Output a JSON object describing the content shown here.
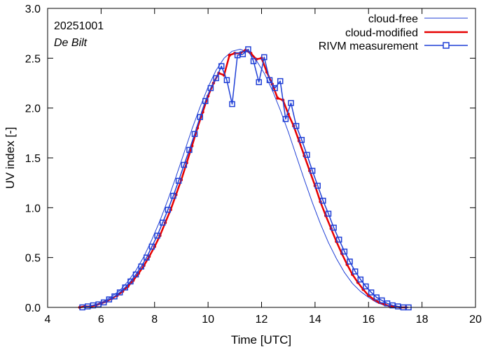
{
  "chart_data": {
    "type": "line",
    "title": "",
    "xlabel": "Time  [UTC]",
    "ylabel": "UV index  [-]",
    "xlim": [
      4,
      20
    ],
    "ylim": [
      0,
      3.0
    ],
    "xticks": [
      "4",
      "6",
      "8",
      "10",
      "12",
      "14",
      "16",
      "18",
      "20"
    ],
    "yticks": [
      "0.0",
      "0.5",
      "1.0",
      "1.5",
      "2.0",
      "2.5",
      "3.0"
    ],
    "annotations": {
      "date": "20251001",
      "location": "De Bilt"
    },
    "legend_position": "top-right",
    "colors": {
      "cloud_free": "#1f3fd6",
      "cloud_modified": "#e60000",
      "measurement": "#1f3fd6"
    },
    "series": [
      {
        "name": "cloud-free",
        "style": "line",
        "x": [
          5.2,
          5.5,
          5.8,
          6.1,
          6.4,
          6.7,
          7.0,
          7.3,
          7.6,
          7.9,
          8.2,
          8.5,
          8.8,
          9.1,
          9.4,
          9.7,
          10.0,
          10.3,
          10.6,
          10.9,
          11.2,
          11.5,
          11.8,
          12.1,
          12.4,
          12.7,
          13.0,
          13.3,
          13.6,
          13.9,
          14.2,
          14.5,
          14.8,
          15.1,
          15.4,
          15.7,
          16.0,
          16.3,
          16.6,
          16.9,
          17.2,
          17.5
        ],
        "y": [
          0.0,
          0.01,
          0.03,
          0.06,
          0.11,
          0.17,
          0.26,
          0.37,
          0.51,
          0.68,
          0.87,
          1.08,
          1.31,
          1.55,
          1.79,
          2.01,
          2.21,
          2.38,
          2.5,
          2.57,
          2.59,
          2.56,
          2.48,
          2.35,
          2.18,
          1.98,
          1.76,
          1.52,
          1.28,
          1.05,
          0.84,
          0.65,
          0.49,
          0.35,
          0.24,
          0.16,
          0.1,
          0.05,
          0.02,
          0.01,
          0.0,
          0.0
        ]
      },
      {
        "name": "cloud-modified",
        "style": "line-markers",
        "x": [
          5.2,
          5.4,
          5.6,
          5.8,
          6.0,
          6.2,
          6.4,
          6.6,
          6.8,
          7.0,
          7.2,
          7.4,
          7.6,
          7.8,
          8.0,
          8.2,
          8.4,
          8.6,
          8.8,
          9.0,
          9.2,
          9.4,
          9.6,
          9.8,
          10.0,
          10.2,
          10.4,
          10.6,
          10.8,
          11.0,
          11.2,
          11.4,
          11.6,
          11.8,
          12.0,
          12.2,
          12.4,
          12.6,
          12.8,
          13.0,
          13.2,
          13.4,
          13.6,
          13.8,
          14.0,
          14.2,
          14.4,
          14.6,
          14.8,
          15.0,
          15.2,
          15.4,
          15.6,
          15.8,
          16.0,
          16.2,
          16.4,
          16.6,
          16.8,
          17.0,
          17.2,
          17.4
        ],
        "y": [
          0.0,
          0.01,
          0.01,
          0.02,
          0.04,
          0.06,
          0.09,
          0.12,
          0.16,
          0.21,
          0.27,
          0.34,
          0.42,
          0.51,
          0.61,
          0.72,
          0.85,
          0.98,
          1.13,
          1.28,
          1.45,
          1.62,
          1.8,
          1.96,
          2.12,
          2.25,
          2.35,
          2.33,
          2.53,
          2.55,
          2.55,
          2.58,
          2.55,
          2.49,
          2.5,
          2.36,
          2.24,
          2.1,
          2.08,
          1.94,
          1.82,
          1.67,
          1.52,
          1.37,
          1.22,
          1.06,
          0.92,
          0.79,
          0.66,
          0.54,
          0.43,
          0.33,
          0.25,
          0.18,
          0.12,
          0.08,
          0.05,
          0.03,
          0.01,
          0.01,
          0.0,
          0.0
        ]
      },
      {
        "name": "RIVM measurement",
        "style": "line-markers",
        "x": [
          5.3,
          5.5,
          5.7,
          5.9,
          6.1,
          6.3,
          6.5,
          6.7,
          6.9,
          7.1,
          7.3,
          7.5,
          7.7,
          7.9,
          8.1,
          8.3,
          8.5,
          8.7,
          8.9,
          9.1,
          9.3,
          9.5,
          9.7,
          9.9,
          10.1,
          10.3,
          10.5,
          10.7,
          10.9,
          11.1,
          11.3,
          11.5,
          11.7,
          11.9,
          12.1,
          12.3,
          12.5,
          12.7,
          12.9,
          13.1,
          13.3,
          13.5,
          13.7,
          13.9,
          14.1,
          14.3,
          14.5,
          14.7,
          14.9,
          15.1,
          15.3,
          15.5,
          15.7,
          15.9,
          16.1,
          16.3,
          16.5,
          16.7,
          16.9,
          17.1,
          17.3,
          17.5
        ],
        "y": [
          0.0,
          0.01,
          0.02,
          0.03,
          0.05,
          0.08,
          0.11,
          0.15,
          0.2,
          0.26,
          0.33,
          0.41,
          0.5,
          0.61,
          0.72,
          0.85,
          0.98,
          1.12,
          1.27,
          1.43,
          1.58,
          1.74,
          1.91,
          2.07,
          2.2,
          2.3,
          2.42,
          2.28,
          2.04,
          2.53,
          2.54,
          2.59,
          2.47,
          2.26,
          2.51,
          2.28,
          2.2,
          2.27,
          1.89,
          2.05,
          1.82,
          1.68,
          1.53,
          1.37,
          1.22,
          1.07,
          0.94,
          0.8,
          0.68,
          0.56,
          0.46,
          0.36,
          0.28,
          0.21,
          0.15,
          0.1,
          0.07,
          0.04,
          0.02,
          0.01,
          0.0,
          0.0
        ]
      }
    ]
  }
}
